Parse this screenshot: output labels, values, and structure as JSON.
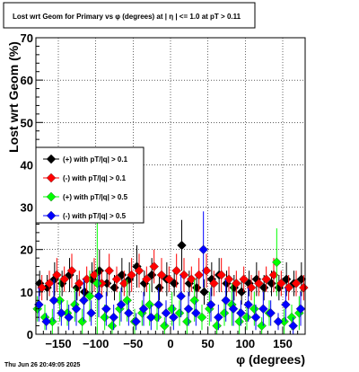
{
  "chart_data": {
    "type": "scatter",
    "title": "Lost wrt Geom for Primary vs φ (degrees) at |  η  | <= 1.0 at pT > 0.11",
    "xlabel": "φ (degrees)",
    "ylabel": "Lost wrt Geom (%)",
    "xlim": [
      -180,
      180
    ],
    "ylim": [
      0,
      70
    ],
    "x_ticks": [
      -150,
      -100,
      -50,
      0,
      50,
      100,
      150
    ],
    "x_tick_labels": [
      "−150",
      "−100",
      "−50",
      "0",
      "50",
      "100",
      "150"
    ],
    "y_ticks": [
      0,
      10,
      20,
      30,
      40,
      50,
      60,
      70
    ],
    "y_tick_labels": [
      "0",
      "10",
      "20",
      "30",
      "40",
      "50",
      "60",
      "70"
    ],
    "grid": true,
    "legend_position": "middle-left",
    "timestamp": "Thu Jun 26 20:49:05 2025",
    "series": [
      {
        "name": "(+) with pT/|q| > 0.1",
        "color": "#000000",
        "x": [
          -175,
          -165,
          -155,
          -145,
          -135,
          -125,
          -115,
          -105,
          -95,
          -85,
          -75,
          -65,
          -55,
          -45,
          -35,
          -25,
          -15,
          -5,
          5,
          15,
          25,
          35,
          45,
          55,
          65,
          75,
          85,
          95,
          105,
          115,
          125,
          135,
          145,
          155,
          165,
          175
        ],
        "y": [
          12,
          11,
          13,
          12,
          14,
          11,
          10,
          13,
          15,
          12,
          11,
          14,
          13,
          16,
          12,
          14,
          11,
          13,
          12,
          21,
          12,
          11,
          10,
          13,
          14,
          12,
          11,
          10,
          12,
          13,
          11,
          12,
          11,
          13,
          12,
          13
        ],
        "err": [
          3,
          3,
          4,
          3,
          4,
          3,
          3,
          4,
          5,
          3,
          3,
          4,
          4,
          5,
          3,
          4,
          3,
          4,
          3,
          6,
          3,
          3,
          3,
          4,
          4,
          3,
          3,
          3,
          3,
          4,
          3,
          3,
          3,
          4,
          3,
          4
        ]
      },
      {
        "name": "(-) with pT/|q| > 0.1",
        "color": "#ff0000",
        "x": [
          -172,
          -162,
          -152,
          -142,
          -132,
          -122,
          -112,
          -102,
          -92,
          -82,
          -72,
          -62,
          -52,
          -42,
          -32,
          -22,
          -12,
          -2,
          8,
          18,
          28,
          38,
          48,
          58,
          68,
          78,
          88,
          98,
          108,
          118,
          128,
          138,
          148,
          158,
          168,
          178
        ],
        "y": [
          11,
          12,
          14,
          13,
          15,
          12,
          13,
          14,
          12,
          15,
          13,
          12,
          14,
          15,
          13,
          16,
          14,
          13,
          15,
          14,
          13,
          14,
          15,
          12,
          14,
          13,
          12,
          13,
          11,
          12,
          13,
          14,
          12,
          11,
          12,
          11
        ],
        "err": [
          3,
          3,
          4,
          3,
          4,
          3,
          3,
          4,
          3,
          4,
          3,
          3,
          4,
          4,
          3,
          4,
          4,
          3,
          4,
          4,
          3,
          4,
          4,
          3,
          4,
          3,
          3,
          3,
          3,
          3,
          3,
          4,
          3,
          3,
          3,
          3
        ]
      },
      {
        "name": "(+) with pT/|q| > 0.5",
        "color": "#00ff00",
        "x": [
          -178,
          -168,
          -158,
          -148,
          -138,
          -128,
          -118,
          -108,
          -98,
          -88,
          -78,
          -68,
          -58,
          -48,
          -38,
          -28,
          -18,
          -8,
          2,
          12,
          22,
          32,
          42,
          52,
          62,
          72,
          82,
          92,
          102,
          112,
          122,
          132,
          142,
          152,
          162,
          172
        ],
        "y": [
          6,
          4,
          3,
          8,
          5,
          7,
          3,
          9,
          12,
          4,
          2,
          6,
          8,
          3,
          5,
          7,
          4,
          2,
          6,
          5,
          3,
          8,
          4,
          6,
          2,
          5,
          7,
          3,
          4,
          6,
          2,
          5,
          17,
          3,
          4,
          5
        ],
        "err": [
          3,
          3,
          3,
          5,
          3,
          4,
          3,
          6,
          16,
          3,
          2,
          4,
          5,
          3,
          3,
          5,
          3,
          2,
          4,
          3,
          3,
          5,
          3,
          4,
          2,
          3,
          5,
          3,
          3,
          4,
          2,
          3,
          8,
          3,
          3,
          4
        ]
      },
      {
        "name": "(-) with pT/|q| > 0.5",
        "color": "#0000ff",
        "x": [
          -176,
          -166,
          -156,
          -146,
          -136,
          -126,
          -116,
          -106,
          -96,
          -86,
          -76,
          -66,
          -56,
          -46,
          -36,
          -26,
          -16,
          -6,
          4,
          14,
          24,
          34,
          44,
          54,
          64,
          74,
          84,
          94,
          104,
          114,
          124,
          134,
          144,
          154,
          164,
          174
        ],
        "y": [
          7,
          3,
          8,
          5,
          4,
          6,
          8,
          5,
          9,
          6,
          4,
          7,
          5,
          3,
          6,
          4,
          7,
          5,
          4,
          9,
          6,
          5,
          20,
          7,
          4,
          8,
          6,
          5,
          7,
          4,
          6,
          5,
          3,
          7,
          2,
          6
        ],
        "err": [
          4,
          2,
          5,
          3,
          3,
          4,
          5,
          3,
          5,
          4,
          3,
          4,
          3,
          2,
          4,
          3,
          4,
          3,
          3,
          5,
          4,
          3,
          9,
          4,
          3,
          5,
          4,
          3,
          4,
          3,
          4,
          3,
          2,
          4,
          2,
          4
        ]
      }
    ]
  }
}
